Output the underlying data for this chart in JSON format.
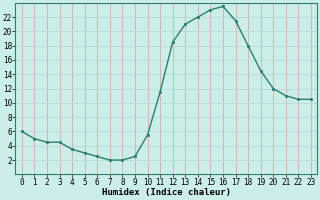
{
  "x": [
    0,
    1,
    2,
    3,
    4,
    5,
    6,
    7,
    8,
    9,
    10,
    11,
    12,
    13,
    14,
    15,
    16,
    17,
    18,
    19,
    20,
    21,
    22,
    23
  ],
  "y": [
    6,
    5,
    4.5,
    4.5,
    3.5,
    3,
    2.5,
    2,
    2,
    2.5,
    5.5,
    11.5,
    18.5,
    21,
    22,
    23,
    23.5,
    21.5,
    18,
    14.5,
    12,
    11,
    10.5,
    10.5
  ],
  "line_color": "#2e7d6e",
  "marker_color": "#2e7d6e",
  "bg_color": "#cceee8",
  "grid_color": "#b0d8d0",
  "xlabel": "Humidex (Indice chaleur)",
  "ylim": [
    0,
    24
  ],
  "xlim": [
    -0.5,
    23.5
  ],
  "yticks": [
    2,
    4,
    6,
    8,
    10,
    12,
    14,
    16,
    18,
    20,
    22
  ],
  "xticks": [
    0,
    1,
    2,
    3,
    4,
    5,
    6,
    7,
    8,
    9,
    10,
    11,
    12,
    13,
    14,
    15,
    16,
    17,
    18,
    19,
    20,
    21,
    22,
    23
  ],
  "tick_fontsize": 5.5,
  "label_fontsize": 6.5,
  "linewidth": 1.0,
  "markersize": 2.0
}
